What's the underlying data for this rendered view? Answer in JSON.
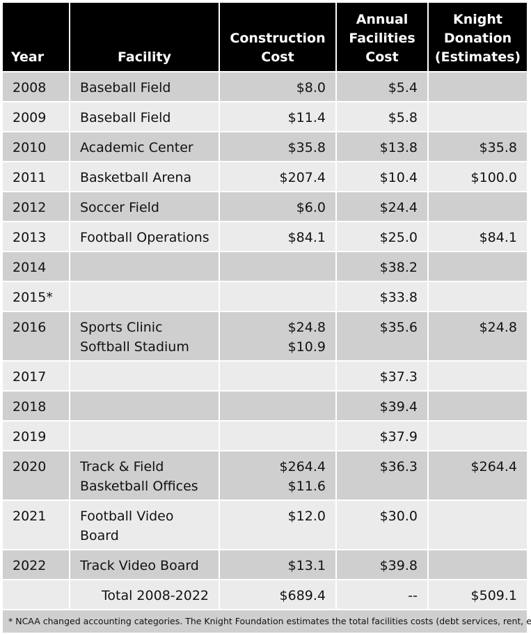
{
  "header": {
    "year": "Year",
    "facility": "Facility",
    "construction": [
      "Construction",
      "Cost"
    ],
    "annual": [
      "Annual",
      "Facilities",
      "Cost"
    ],
    "knight": [
      "Knight",
      "Donation",
      "(Estimates)"
    ]
  },
  "rows": [
    {
      "year": "2008",
      "facility": [
        "Baseball Field"
      ],
      "construction": [
        "$8.0"
      ],
      "annual": "$5.4",
      "knight": ""
    },
    {
      "year": "2009",
      "facility": [
        "Baseball Field"
      ],
      "construction": [
        "$11.4"
      ],
      "annual": "$5.8",
      "knight": ""
    },
    {
      "year": "2010",
      "facility": [
        "Academic Center"
      ],
      "construction": [
        "$35.8"
      ],
      "annual": "$13.8",
      "knight": "$35.8"
    },
    {
      "year": "2011",
      "facility": [
        "Basketball Arena"
      ],
      "construction": [
        "$207.4"
      ],
      "annual": "$10.4",
      "knight": "$100.0"
    },
    {
      "year": "2012",
      "facility": [
        "Soccer Field"
      ],
      "construction": [
        "$6.0"
      ],
      "annual": "$24.4",
      "knight": ""
    },
    {
      "year": "2013",
      "facility": [
        "Football Operations"
      ],
      "construction": [
        "$84.1"
      ],
      "annual": "$25.0",
      "knight": "$84.1"
    },
    {
      "year": "2014",
      "facility": [
        ""
      ],
      "construction": [
        ""
      ],
      "annual": "$38.2",
      "knight": ""
    },
    {
      "year": "2015*",
      "facility": [
        ""
      ],
      "construction": [
        ""
      ],
      "annual": "$33.8",
      "knight": ""
    },
    {
      "year": "2016",
      "facility": [
        "Sports Clinic",
        "Softball Stadium"
      ],
      "construction": [
        "$24.8",
        "$10.9"
      ],
      "annual": "$35.6",
      "knight": "$24.8"
    },
    {
      "year": "2017",
      "facility": [
        ""
      ],
      "construction": [
        ""
      ],
      "annual": "$37.3",
      "knight": ""
    },
    {
      "year": "2018",
      "facility": [
        ""
      ],
      "construction": [
        ""
      ],
      "annual": "$39.4",
      "knight": ""
    },
    {
      "year": "2019",
      "facility": [
        ""
      ],
      "construction": [
        ""
      ],
      "annual": "$37.9",
      "knight": ""
    },
    {
      "year": "2020",
      "facility": [
        "Track & Field",
        "Basketball Offices"
      ],
      "construction": [
        "$264.4",
        "$11.6"
      ],
      "annual": "$36.3",
      "knight": "$264.4"
    },
    {
      "year": "2021",
      "facility": [
        "Football Video",
        "Board"
      ],
      "construction": [
        "$12.0"
      ],
      "annual": "$30.0",
      "knight": ""
    },
    {
      "year": "2022",
      "facility": [
        "Track Video Board"
      ],
      "construction": [
        "$13.1"
      ],
      "annual": "$39.8",
      "knight": ""
    }
  ],
  "total": {
    "label": "Total 2008-2022",
    "construction": "$689.4",
    "annual": "--",
    "knight": "$509.1"
  },
  "footnote": "* NCAA changed accounting categories. The Knight Foundation estimates the total facilities costs (debt services, rent, etc.)",
  "colors": {
    "header_bg": "#000000",
    "row_dark": "#cfcfcf",
    "row_light": "#ebebeb"
  }
}
